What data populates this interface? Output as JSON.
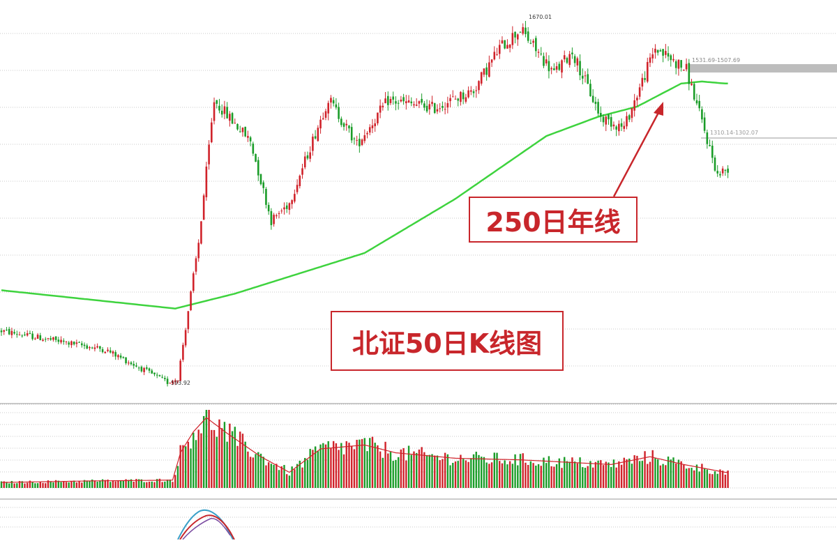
{
  "chart_data": {
    "type": "candlestick",
    "title": "北证50日K线图",
    "annotation": "250日年线",
    "price_labels": {
      "high": "1670.01",
      "low": "593.92",
      "band_upper": "1531.69-1507.69",
      "band_lower": "1310.14-1302.07"
    },
    "colors": {
      "up": "#d0222a",
      "down": "#1a9c28",
      "ma250": "#3ed33e",
      "volume_ma": "#d0222a",
      "annotation": "#c8262b",
      "grid": "#c8c8c8"
    },
    "price_range": [
      560,
      1720
    ],
    "key_points": [
      {
        "day": 0,
        "price": 760
      },
      {
        "day": 40,
        "price": 705
      },
      {
        "day": 64,
        "price": 608
      },
      {
        "day": 68,
        "price": 620
      },
      {
        "day": 76,
        "price": 1020
      },
      {
        "day": 82,
        "price": 1440
      },
      {
        "day": 96,
        "price": 1320
      },
      {
        "day": 104,
        "price": 1085
      },
      {
        "day": 111,
        "price": 1138
      },
      {
        "day": 126,
        "price": 1446
      },
      {
        "day": 137,
        "price": 1310
      },
      {
        "day": 149,
        "price": 1440
      },
      {
        "day": 167,
        "price": 1418
      },
      {
        "day": 182,
        "price": 1470
      },
      {
        "day": 192,
        "price": 1595
      },
      {
        "day": 200,
        "price": 1650
      },
      {
        "day": 213,
        "price": 1520
      },
      {
        "day": 220,
        "price": 1585
      },
      {
        "day": 231,
        "price": 1390
      },
      {
        "day": 240,
        "price": 1360
      },
      {
        "day": 252,
        "price": 1595
      },
      {
        "day": 264,
        "price": 1530
      },
      {
        "day": 271,
        "price": 1350
      },
      {
        "day": 276,
        "price": 1220
      },
      {
        "day": 280,
        "price": 1240
      }
    ],
    "ma250": [
      {
        "day": 0,
        "price": 880
      },
      {
        "day": 67,
        "price": 826
      },
      {
        "day": 90,
        "price": 870
      },
      {
        "day": 115,
        "price": 930
      },
      {
        "day": 140,
        "price": 990
      },
      {
        "day": 175,
        "price": 1150
      },
      {
        "day": 210,
        "price": 1335
      },
      {
        "day": 230,
        "price": 1392
      },
      {
        "day": 245,
        "price": 1422
      },
      {
        "day": 262,
        "price": 1490
      },
      {
        "day": 270,
        "price": 1496
      },
      {
        "day": 279,
        "price": 1490
      }
    ],
    "volume_levels": [
      {
        "day": 0,
        "level": 0.07
      },
      {
        "day": 35,
        "level": 0.09
      },
      {
        "day": 66,
        "level": 0.1
      },
      {
        "day": 69,
        "level": 0.45
      },
      {
        "day": 74,
        "level": 0.72
      },
      {
        "day": 79,
        "level": 0.9
      },
      {
        "day": 87,
        "level": 0.7
      },
      {
        "day": 100,
        "level": 0.4
      },
      {
        "day": 111,
        "level": 0.2
      },
      {
        "day": 123,
        "level": 0.5
      },
      {
        "day": 140,
        "level": 0.55
      },
      {
        "day": 152,
        "level": 0.45
      },
      {
        "day": 175,
        "level": 0.38
      },
      {
        "day": 200,
        "level": 0.36
      },
      {
        "day": 235,
        "level": 0.3
      },
      {
        "day": 250,
        "level": 0.4
      },
      {
        "day": 263,
        "level": 0.3
      },
      {
        "day": 279,
        "level": 0.2
      }
    ]
  }
}
